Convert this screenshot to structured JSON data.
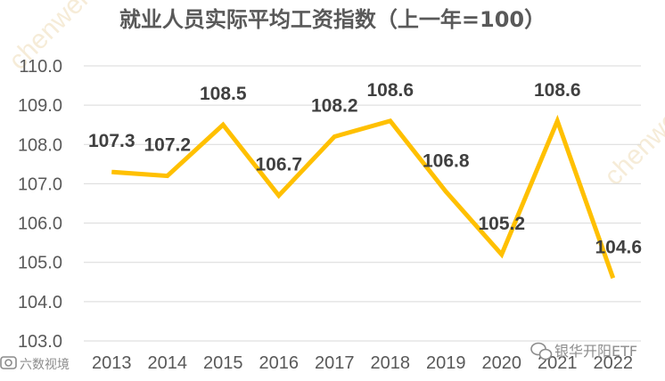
{
  "chart_data": {
    "type": "line",
    "title": "就业人员实际平均工资指数（上一年=100）",
    "categories": [
      "2013",
      "2014",
      "2015",
      "2016",
      "2017",
      "2018",
      "2019",
      "2020",
      "2021",
      "2022"
    ],
    "series": [
      {
        "values": [
          107.3,
          107.2,
          108.5,
          106.7,
          108.2,
          108.6,
          106.8,
          105.2,
          108.6,
          104.6
        ]
      }
    ],
    "data_labels": [
      "107.3",
      "107.2",
      "108.5",
      "106.7",
      "108.2",
      "108.6",
      "106.8",
      "105.2",
      "108.6",
      "104.6"
    ],
    "ylim": [
      103.0,
      110.0
    ],
    "yticks": [
      "110.0",
      "109.0",
      "108.0",
      "107.0",
      "106.0",
      "105.0",
      "104.0",
      "103.0"
    ],
    "grid": true,
    "legend": "none",
    "line_color": "#FFC000",
    "grid_color": "#D9D9D9"
  },
  "watermarks": {
    "left": "六数视境",
    "right": "银华开阳ETF",
    "left_icon": "camera-icon",
    "right_icon": "wechat-icon",
    "diagonal": "chenwei"
  }
}
